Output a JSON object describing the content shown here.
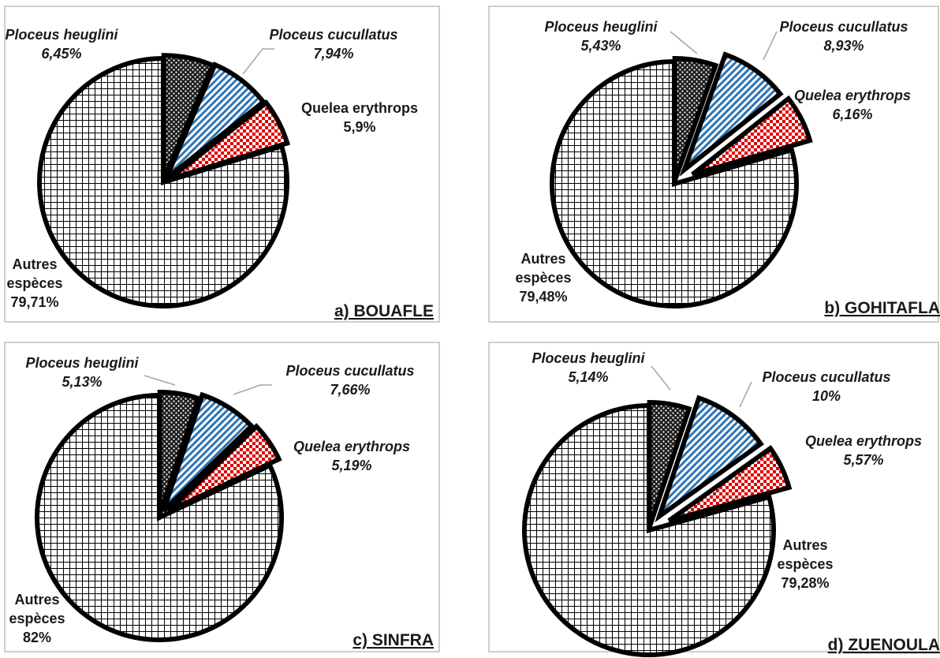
{
  "colors": {
    "border": "#000000",
    "frame": "#bfbfbf",
    "grid_pattern": "#000000",
    "heuglini_pattern": "#000000",
    "cucullatus_stripe": "#2e75b6",
    "erythrops_check": "#e00000",
    "leader_line": "#a6a6a6"
  },
  "icons": {
    "autres": "grid-hatch-pattern",
    "heuglini": "dotted-dense-pattern",
    "cucullatus": "diagonal-stripe-pattern",
    "erythrops": "checker-pattern"
  },
  "chart_data": [
    {
      "type": "pie",
      "title": "a) BOUAFLE",
      "slices": [
        {
          "key": "autres",
          "label": [
            "Autres",
            "espèces"
          ],
          "value_label": "79,71%",
          "value": 79.71,
          "italic": false
        },
        {
          "key": "heuglini",
          "label": [
            "Ploceus heuglini"
          ],
          "value_label": "6,45%",
          "value": 6.45,
          "italic": true
        },
        {
          "key": "cucullatus",
          "label": [
            "Ploceus cucullatus"
          ],
          "value_label": "7,94%",
          "value": 7.94,
          "italic": true
        },
        {
          "key": "erythrops",
          "label": [
            "Quelea erythrops"
          ],
          "value_label": "5,9%",
          "value": 5.9,
          "italic": false
        }
      ]
    },
    {
      "type": "pie",
      "title": "b) GOHITAFLA",
      "slices": [
        {
          "key": "autres",
          "label": [
            "Autres",
            "espèces"
          ],
          "value_label": "79,48%",
          "value": 79.48,
          "italic": false
        },
        {
          "key": "heuglini",
          "label": [
            "Ploceus heuglini"
          ],
          "value_label": "5,43%",
          "value": 5.43,
          "italic": true
        },
        {
          "key": "cucullatus",
          "label": [
            "Ploceus cucullatus"
          ],
          "value_label": "8,93%",
          "value": 8.93,
          "italic": true
        },
        {
          "key": "erythrops",
          "label": [
            "Quelea erythrops"
          ],
          "value_label": "6,16%",
          "value": 6.16,
          "italic": true
        }
      ]
    },
    {
      "type": "pie",
      "title": "c) SINFRA",
      "slices": [
        {
          "key": "autres",
          "label": [
            "Autres",
            "espèces"
          ],
          "value_label": "82%",
          "value": 82,
          "italic": false
        },
        {
          "key": "heuglini",
          "label": [
            "Ploceus heuglini"
          ],
          "value_label": "5,13%",
          "value": 5.13,
          "italic": true
        },
        {
          "key": "cucullatus",
          "label": [
            "Ploceus cucullatus"
          ],
          "value_label": "7,66%",
          "value": 7.66,
          "italic": true
        },
        {
          "key": "erythrops",
          "label": [
            "Quelea erythrops"
          ],
          "value_label": "5,19%",
          "value": 5.19,
          "italic": true
        }
      ]
    },
    {
      "type": "pie",
      "title": "d) ZUENOULA",
      "slices": [
        {
          "key": "autres",
          "label": [
            "Autres",
            "espèces"
          ],
          "value_label": "79,28%",
          "value": 79.28,
          "italic": false
        },
        {
          "key": "heuglini",
          "label": [
            "Ploceus heuglini"
          ],
          "value_label": "5,14%",
          "value": 5.14,
          "italic": true
        },
        {
          "key": "cucullatus",
          "label": [
            "Ploceus cucullatus"
          ],
          "value_label": "10%",
          "value": 10,
          "italic": true
        },
        {
          "key": "erythrops",
          "label": [
            "Quelea erythrops"
          ],
          "value_label": "5,57%",
          "value": 5.57,
          "italic": true
        }
      ]
    }
  ]
}
